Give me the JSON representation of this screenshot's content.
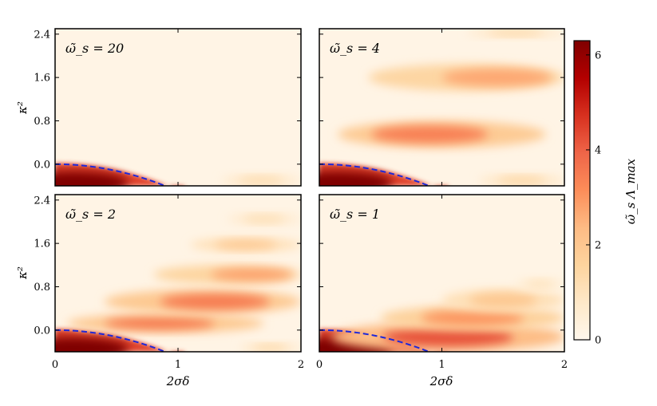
{
  "chart_data": [
    {
      "type": "heatmap",
      "panel": "top-left",
      "annotation": "ω̃_s = 20",
      "xlabel": "",
      "ylabel": "κ²",
      "xlim": [
        0,
        2
      ],
      "ylim": [
        -0.4,
        2.5
      ],
      "x_ticks": [],
      "y_ticks": [
        "2.4",
        "1.6",
        "0.8",
        "0.0"
      ],
      "blobs": [
        {
          "x0": 0.0,
          "x1": 1.0,
          "y0": -0.4,
          "y1": 0.0,
          "peak": 6.3,
          "type": "corner"
        },
        {
          "x0": 1.35,
          "x1": 2.0,
          "y0": -0.4,
          "y1": -0.2,
          "peak": 1.3,
          "type": "edge"
        }
      ],
      "dashed_boundary": "y = -x²/2 for 0 ≤ x ≤ 1 (approx.)"
    },
    {
      "type": "heatmap",
      "panel": "top-right",
      "annotation": "ω̃_s = 4",
      "xlabel": "",
      "ylabel": "",
      "xlim": [
        0,
        2
      ],
      "ylim": [
        -0.4,
        2.5
      ],
      "x_ticks": [],
      "y_ticks": [],
      "blobs": [
        {
          "x0": 0.0,
          "x1": 1.0,
          "y0": -0.4,
          "y1": 0.0,
          "peak": 6.3,
          "type": "corner"
        },
        {
          "x0": 0.15,
          "x1": 1.85,
          "y0": 0.3,
          "y1": 0.8,
          "peak": 3.4,
          "cx": 0.9,
          "type": "band"
        },
        {
          "x0": 0.4,
          "x1": 2.0,
          "y0": 1.35,
          "y1": 1.85,
          "peak": 2.7,
          "cx": 1.45,
          "type": "band"
        },
        {
          "x0": 1.2,
          "x1": 2.0,
          "y0": 2.35,
          "y1": 2.5,
          "peak": 1.5,
          "type": "edge"
        },
        {
          "x0": 1.3,
          "x1": 2.0,
          "y0": -0.4,
          "y1": -0.2,
          "peak": 1.5,
          "type": "edge"
        }
      ]
    },
    {
      "type": "heatmap",
      "panel": "bottom-left",
      "annotation": "ω̃_s = 2",
      "xlabel": "2σδ",
      "ylabel": "κ²",
      "xlim": [
        0,
        2
      ],
      "ylim": [
        -0.4,
        2.5
      ],
      "x_ticks": [
        "0",
        "1",
        "2"
      ],
      "y_ticks": [
        "2.4",
        "1.6",
        "0.8",
        "0.0"
      ],
      "blobs": [
        {
          "x0": 0.0,
          "x1": 1.0,
          "y0": -0.4,
          "y1": 0.0,
          "peak": 6.3,
          "type": "corner"
        },
        {
          "x0": 0.1,
          "x1": 1.7,
          "y0": -0.05,
          "y1": 0.3,
          "peak": 3.5,
          "cx": 0.85,
          "type": "band"
        },
        {
          "x0": 0.4,
          "x1": 2.0,
          "y0": 0.3,
          "y1": 0.75,
          "peak": 3.5,
          "cx": 1.3,
          "type": "band"
        },
        {
          "x0": 0.8,
          "x1": 2.0,
          "y0": 0.85,
          "y1": 1.2,
          "peak": 2.8,
          "cx": 1.6,
          "type": "band"
        },
        {
          "x0": 1.1,
          "x1": 2.0,
          "y0": 1.45,
          "y1": 1.7,
          "peak": 2.0,
          "type": "band"
        },
        {
          "x0": 1.4,
          "x1": 2.0,
          "y0": 1.95,
          "y1": 2.15,
          "peak": 1.2,
          "type": "band"
        },
        {
          "x0": 1.5,
          "x1": 2.0,
          "y0": -0.4,
          "y1": -0.25,
          "peak": 1.5,
          "type": "edge"
        }
      ]
    },
    {
      "type": "heatmap",
      "panel": "bottom-right",
      "annotation": "ω̃_s = 1",
      "xlabel": "2σδ",
      "ylabel": "",
      "xlim": [
        0,
        2
      ],
      "ylim": [
        -0.4,
        2.5
      ],
      "x_ticks": [
        "0",
        "1",
        "2"
      ],
      "y_ticks": [],
      "blobs": [
        {
          "x0": 0.0,
          "x1": 1.0,
          "y0": -0.4,
          "y1": 0.0,
          "peak": 6.3,
          "type": "corner"
        },
        {
          "x0": 0.1,
          "x1": 2.0,
          "y0": -0.4,
          "y1": 0.15,
          "peak": 4.2,
          "type": "wedge"
        },
        {
          "x0": 0.5,
          "x1": 2.0,
          "y0": 0.0,
          "y1": 0.45,
          "peak": 3.0,
          "type": "wedge"
        },
        {
          "x0": 1.0,
          "x1": 2.0,
          "y0": 0.35,
          "y1": 0.75,
          "peak": 2.0,
          "type": "band"
        },
        {
          "x0": 1.6,
          "x1": 2.0,
          "y0": 0.75,
          "y1": 0.95,
          "peak": 1.0,
          "type": "band"
        }
      ]
    }
  ],
  "colorbar": {
    "label": "ω̃_s Λ_max",
    "min": 0,
    "max": 6.3,
    "ticks": [
      "6",
      "4",
      "2",
      "0"
    ],
    "tick_values": [
      6,
      4,
      2,
      0
    ],
    "colormap": "OrRd",
    "colors": [
      "#fff7ec",
      "#fee8c8",
      "#fdd49e",
      "#fdbb84",
      "#fc8d59",
      "#ef6548",
      "#d7301f",
      "#b30000",
      "#7f0000"
    ]
  },
  "dashed_line_color": "#1f28d8"
}
